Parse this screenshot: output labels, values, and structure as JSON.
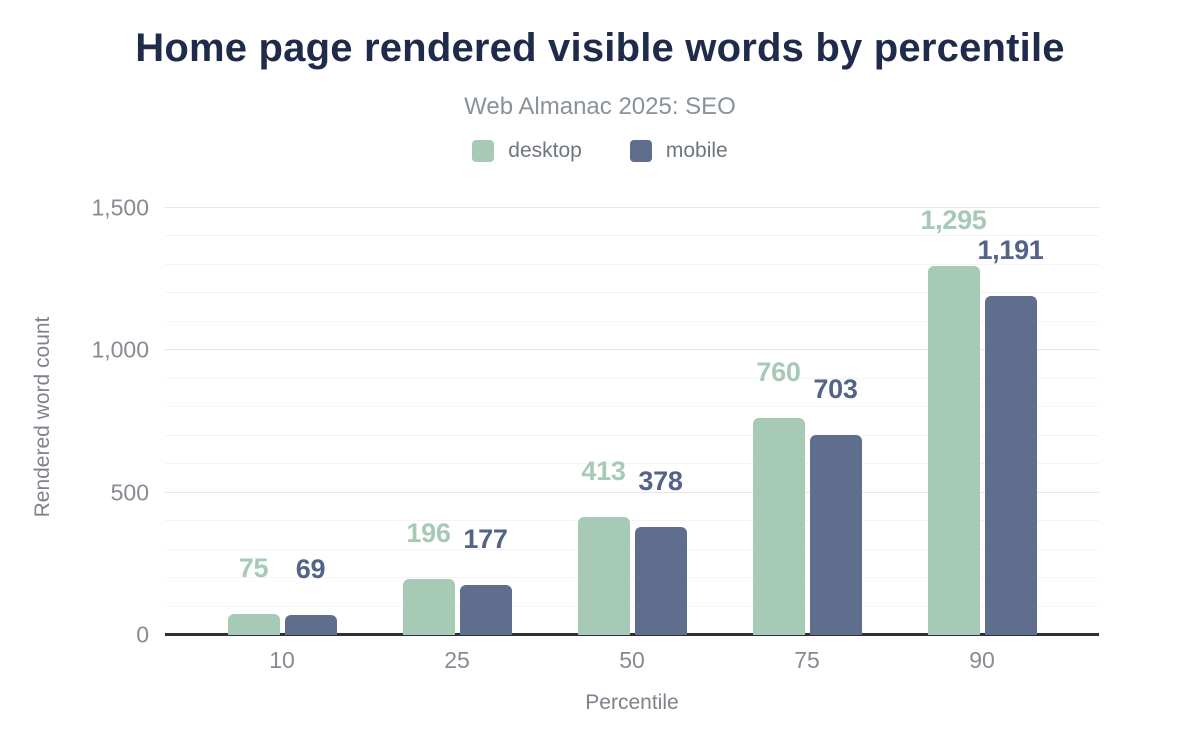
{
  "chart_data": {
    "type": "bar",
    "title": "Home page rendered visible words by percentile",
    "subtitle": "Web Almanac 2025: SEO",
    "xlabel": "Percentile",
    "ylabel": "Rendered word count",
    "categories": [
      "10",
      "25",
      "50",
      "75",
      "90"
    ],
    "series": [
      {
        "name": "desktop",
        "color": "#a6cab6",
        "label_color": "#a6cab6",
        "values": [
          75,
          196,
          413,
          760,
          1295
        ],
        "value_labels": [
          "75",
          "196",
          "413",
          "760",
          "1,295"
        ]
      },
      {
        "name": "mobile",
        "color": "#5f6e8c",
        "label_color": "#536389",
        "values": [
          69,
          177,
          378,
          703,
          1191
        ],
        "value_labels": [
          "69",
          "177",
          "378",
          "703",
          "1,191"
        ]
      }
    ],
    "y_ticks": [
      {
        "value": 0,
        "label": "0"
      },
      {
        "value": 500,
        "label": "500"
      },
      {
        "value": 1000,
        "label": "1,000"
      },
      {
        "value": 1500,
        "label": "1,500"
      }
    ],
    "ylim": [
      0,
      1500
    ],
    "minor_grid_step": 100,
    "major_grid_step": 500,
    "grid": true,
    "legend_position": "top"
  }
}
